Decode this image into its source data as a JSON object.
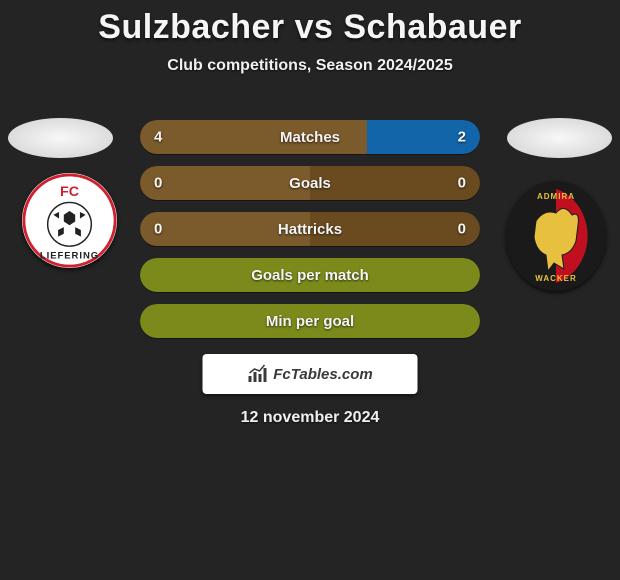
{
  "title": "Sulzbacher vs Schabauer",
  "subtitle": "Club competitions, Season 2024/2025",
  "date": "12 november 2024",
  "attribution": "FcTables.com",
  "colors": {
    "row_brown": "#7b5a2b",
    "row_brown_dark": "#6a4b20",
    "row_blue": "#1265a8",
    "row_olive": "#7c8a1b",
    "row_olive_dark": "#6c7816",
    "background": "#242424"
  },
  "stats": [
    {
      "label": "Matches",
      "left_val": "4",
      "right_val": "2",
      "left_pct": 66.7,
      "right_pct": 33.3,
      "left_color": "#7b5a2b",
      "right_color": "#1265a8",
      "show_vals": true
    },
    {
      "label": "Goals",
      "left_val": "0",
      "right_val": "0",
      "left_pct": 50,
      "right_pct": 50,
      "left_color": "#7b5a2b",
      "right_color": "#6a4b20",
      "show_vals": true
    },
    {
      "label": "Hattricks",
      "left_val": "0",
      "right_val": "0",
      "left_pct": 50,
      "right_pct": 50,
      "left_color": "#7b5a2b",
      "right_color": "#6a4b20",
      "show_vals": true
    },
    {
      "label": "Goals per match",
      "full_color": "#7c8a1b",
      "show_vals": false
    },
    {
      "label": "Min per goal",
      "full_color": "#7c8a1b",
      "show_vals": false
    }
  ],
  "team_left": {
    "name": "FC Liefering",
    "badge_text_top": "FC",
    "badge_text_bottom": "LIEFERING",
    "badge_bg": "#ffffff",
    "badge_accent": "#d02030",
    "badge_black": "#1a1a1a"
  },
  "team_right": {
    "name": "Admira Wacker",
    "badge_text_top": "ADMIRA",
    "badge_text_bottom": "WACKER",
    "badge_bg": "#1a1a1a",
    "badge_red": "#c01020",
    "badge_yellow": "#e8c040"
  }
}
